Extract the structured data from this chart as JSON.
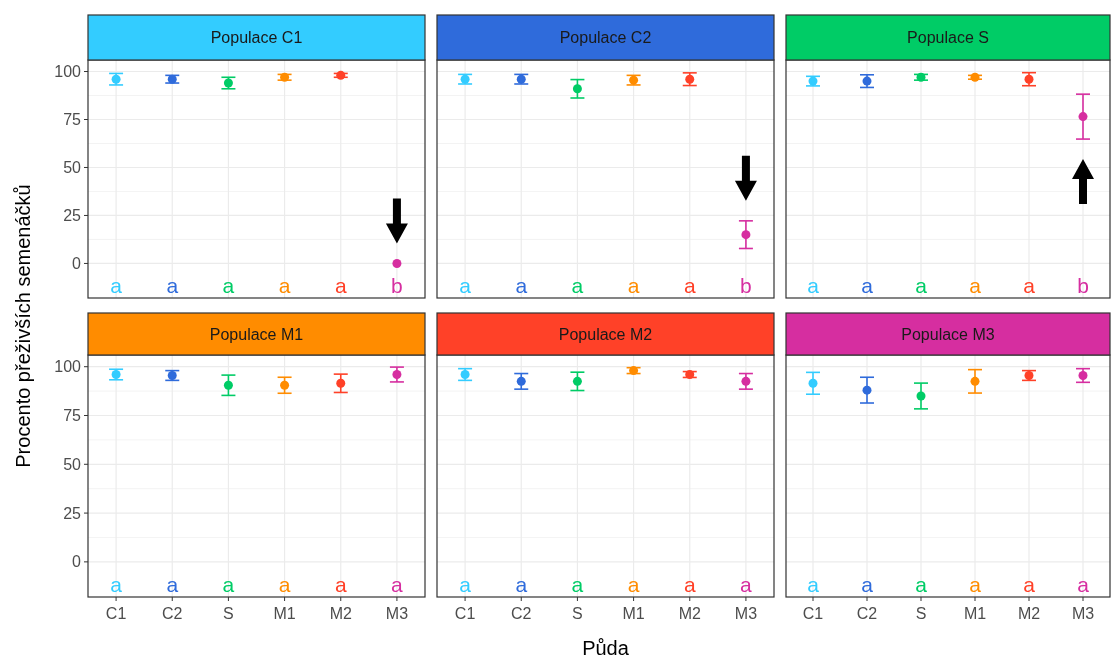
{
  "chart_data": [
    {
      "type": "scatter",
      "title": "Populace C1",
      "ylabel": "Procento přeživších semenáčků",
      "categories": [
        "C1",
        "C2",
        "S",
        "M1",
        "M2",
        "M3"
      ],
      "values": [
        96,
        96,
        94,
        97,
        98,
        0
      ],
      "errors": [
        3,
        2,
        3,
        1.5,
        1,
        null
      ],
      "colors": [
        "#33ccff",
        "#2f6bdb",
        "#00cc66",
        "#ff8c00",
        "#ff4128",
        "#d62ea0"
      ],
      "ylim": [
        -18,
        106
      ],
      "yticks": [
        0,
        25,
        50,
        75,
        100
      ],
      "grid": true,
      "marker": "circle",
      "tick_labels": "y",
      "annotations": [
        "a",
        "a",
        "a",
        "a",
        "a",
        "b"
      ]
    },
    {
      "type": "scatter",
      "title": "Populace C2",
      "categories": [
        "C1",
        "C2",
        "S",
        "M1",
        "M2",
        "M3"
      ],
      "values": [
        96,
        96,
        91,
        95.5,
        96,
        15
      ],
      "errors": [
        2.5,
        2.5,
        4.8,
        2.5,
        3.3,
        7.2
      ],
      "colors": [
        "#33ccff",
        "#2f6bdb",
        "#00cc66",
        "#ff8c00",
        "#ff4128",
        "#d62ea0"
      ],
      "ylim": [
        -18,
        106
      ],
      "yticks": [
        0,
        25,
        50,
        75,
        100
      ],
      "grid": true,
      "marker": "circle",
      "tick_labels": false,
      "annotations": [
        "a",
        "a",
        "a",
        "a",
        "a",
        "b"
      ]
    },
    {
      "type": "scatter",
      "title": "Populace S",
      "categories": [
        "C1",
        "C2",
        "S",
        "M1",
        "M2",
        "M3"
      ],
      "values": [
        95,
        95,
        97,
        97,
        96,
        76.5
      ],
      "errors": [
        2.5,
        3.3,
        1.5,
        1,
        3.4,
        11.7
      ],
      "colors": [
        "#33ccff",
        "#2f6bdb",
        "#00cc66",
        "#ff8c00",
        "#ff4128",
        "#d62ea0"
      ],
      "ylim": [
        -18,
        106
      ],
      "yticks": [
        0,
        25,
        50,
        75,
        100
      ],
      "grid": true,
      "marker": "circle",
      "tick_labels": false,
      "annotations": [
        "a",
        "a",
        "a",
        "a",
        "a",
        "b"
      ]
    },
    {
      "type": "scatter",
      "title": "Populace M1",
      "categories": [
        "C1",
        "C2",
        "S",
        "M1",
        "M2",
        "M3"
      ],
      "values": [
        96,
        95.5,
        90.5,
        90.5,
        91.5,
        96
      ],
      "errors": [
        2.7,
        2.5,
        5.2,
        4.1,
        4.7,
        3.8
      ],
      "colors": [
        "#33ccff",
        "#2f6bdb",
        "#00cc66",
        "#ff8c00",
        "#ff4128",
        "#d62ea0"
      ],
      "ylim": [
        -18,
        106
      ],
      "yticks": [
        0,
        25,
        50,
        75,
        100
      ],
      "grid": true,
      "marker": "circle",
      "annotations": [
        "a",
        "a",
        "a",
        "a",
        "a",
        "a"
      ]
    },
    {
      "type": "scatter",
      "title": "Populace M2",
      "xlabel": "Půda",
      "categories": [
        "C1",
        "C2",
        "S",
        "M1",
        "M2",
        "M3"
      ],
      "values": [
        96,
        92.5,
        92.5,
        98,
        96,
        92.5
      ],
      "errors": [
        3,
        4,
        4.7,
        1.5,
        1.5,
        4
      ],
      "colors": [
        "#33ccff",
        "#2f6bdb",
        "#00cc66",
        "#ff8c00",
        "#ff4128",
        "#d62ea0"
      ],
      "ylim": [
        -18,
        106
      ],
      "yticks": [
        0,
        25,
        50,
        75,
        100
      ],
      "grid": true,
      "marker": "circle",
      "tick_labels": "x",
      "annotations": [
        "a",
        "a",
        "a",
        "a",
        "a",
        "a"
      ]
    },
    {
      "type": "scatter",
      "title": "Populace M3",
      "categories": [
        "C1",
        "C2",
        "S",
        "M1",
        "M2",
        "M3"
      ],
      "values": [
        91.5,
        88,
        85,
        92.5,
        95.5,
        95.5
      ],
      "errors": [
        5.6,
        6.6,
        6.6,
        6,
        2.5,
        3.5
      ],
      "colors": [
        "#33ccff",
        "#2f6bdb",
        "#00cc66",
        "#ff8c00",
        "#ff4128",
        "#d62ea0"
      ],
      "ylim": [
        -18,
        106
      ],
      "yticks": [
        0,
        25,
        50,
        75,
        100
      ],
      "grid": true,
      "marker": "circle",
      "tick_labels": "x",
      "annotations": [
        "a",
        "a",
        "a",
        "a",
        "a",
        "a"
      ]
    }
  ]
}
